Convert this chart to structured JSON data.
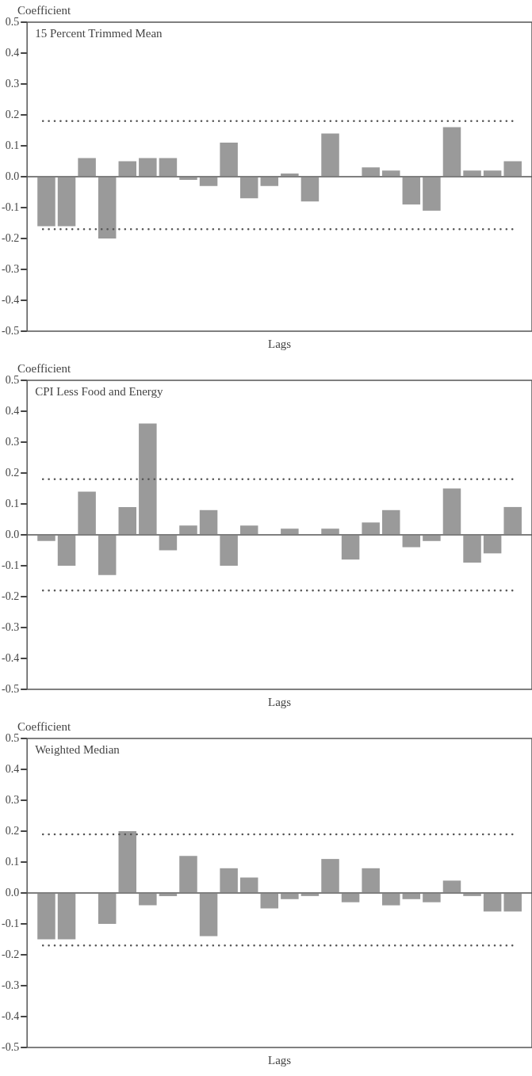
{
  "chart_data": [
    {
      "type": "bar",
      "title": "15 Percent Trimmed Mean",
      "ylabel": "Coefficient",
      "xlabel": "Lags",
      "categories": [
        null,
        null,
        null,
        null,
        null,
        null,
        null,
        null,
        null,
        null,
        null,
        null,
        null,
        null,
        null,
        null,
        null,
        null,
        null,
        null,
        null,
        null,
        null,
        null
      ],
      "values": [
        -0.16,
        -0.16,
        0.06,
        -0.2,
        0.05,
        0.06,
        0.06,
        -0.01,
        -0.03,
        0.11,
        -0.07,
        -0.03,
        0.01,
        -0.08,
        0.14,
        0,
        0.03,
        0.02,
        -0.09,
        -0.11,
        0.16,
        0.02,
        0.02,
        0.05
      ],
      "color": "#9a9a9a",
      "ylim": [
        -0.5,
        0.5
      ],
      "yticks": [
        {
          "value": -0.5,
          "label": "-0.5"
        },
        {
          "value": -0.4,
          "label": "-0.4"
        },
        {
          "value": -0.3,
          "label": "-0.3"
        },
        {
          "value": -0.2,
          "label": "-0.2"
        },
        {
          "value": -0.1,
          "label": "-0.1"
        },
        {
          "value": 0,
          "label": "0.0"
        },
        {
          "value": 0.1,
          "label": "0.1"
        },
        {
          "value": 0.2,
          "label": "0.2"
        },
        {
          "value": 0.3,
          "label": "0.3"
        },
        {
          "value": 0.4,
          "label": "0.4"
        },
        {
          "value": 0.5,
          "label": "0.5"
        }
      ],
      "ref_lines": [
        {
          "axis": "y",
          "value": 0.18,
          "line_style": "dotted",
          "color": "#555555"
        },
        {
          "axis": "y",
          "value": -0.17,
          "line_style": "dotted",
          "color": "#555555"
        }
      ],
      "tick_labels": "y"
    },
    {
      "type": "bar",
      "title": "CPI Less Food and Energy",
      "ylabel": "Coefficient",
      "xlabel": "Lags",
      "categories": [
        null,
        null,
        null,
        null,
        null,
        null,
        null,
        null,
        null,
        null,
        null,
        null,
        null,
        null,
        null,
        null,
        null,
        null,
        null,
        null,
        null,
        null,
        null,
        null
      ],
      "values": [
        -0.02,
        -0.1,
        0.14,
        -0.13,
        0.09,
        0.36,
        -0.05,
        0.03,
        0.08,
        -0.1,
        0.03,
        0,
        0.02,
        0,
        0.02,
        -0.08,
        0.04,
        0.08,
        -0.04,
        -0.02,
        0.15,
        -0.09,
        -0.06,
        0.09
      ],
      "color": "#9a9a9a",
      "ylim": [
        -0.5,
        0.5
      ],
      "yticks": [
        {
          "value": -0.5,
          "label": "-0.5"
        },
        {
          "value": -0.4,
          "label": "-0.4"
        },
        {
          "value": -0.3,
          "label": "-0.3"
        },
        {
          "value": -0.2,
          "label": "-0.2"
        },
        {
          "value": -0.1,
          "label": "-0.1"
        },
        {
          "value": 0,
          "label": "0.0"
        },
        {
          "value": 0.1,
          "label": "0.1"
        },
        {
          "value": 0.2,
          "label": "0.2"
        },
        {
          "value": 0.3,
          "label": "0.3"
        },
        {
          "value": 0.4,
          "label": "0.4"
        },
        {
          "value": 0.5,
          "label": "0.5"
        }
      ],
      "ref_lines": [
        {
          "axis": "y",
          "value": 0.18,
          "line_style": "dotted",
          "color": "#555555"
        },
        {
          "axis": "y",
          "value": -0.18,
          "line_style": "dotted",
          "color": "#555555"
        }
      ],
      "tick_labels": "y"
    },
    {
      "type": "bar",
      "title": "Weighted Median",
      "ylabel": "Coefficient",
      "xlabel": "Lags",
      "categories": [
        null,
        null,
        null,
        null,
        null,
        null,
        null,
        null,
        null,
        null,
        null,
        null,
        null,
        null,
        null,
        null,
        null,
        null,
        null,
        null,
        null,
        null,
        null,
        null
      ],
      "values": [
        -0.15,
        -0.15,
        0,
        -0.1,
        0.2,
        -0.04,
        -0.01,
        0.12,
        -0.14,
        0.08,
        0.05,
        -0.05,
        -0.02,
        -0.01,
        0.11,
        -0.03,
        0.08,
        -0.04,
        -0.02,
        -0.03,
        0.04,
        -0.01,
        -0.06,
        -0.06
      ],
      "color": "#9a9a9a",
      "ylim": [
        -0.5,
        0.5
      ],
      "yticks": [
        {
          "value": -0.5,
          "label": "-0.5"
        },
        {
          "value": -0.4,
          "label": "-0.4"
        },
        {
          "value": -0.3,
          "label": "-0.3"
        },
        {
          "value": -0.2,
          "label": "-0.2"
        },
        {
          "value": -0.1,
          "label": "-0.1"
        },
        {
          "value": 0,
          "label": "0.0"
        },
        {
          "value": 0.1,
          "label": "0.1"
        },
        {
          "value": 0.2,
          "label": "0.2"
        },
        {
          "value": 0.3,
          "label": "0.3"
        },
        {
          "value": 0.4,
          "label": "0.4"
        },
        {
          "value": 0.5,
          "label": "0.5"
        }
      ],
      "ref_lines": [
        {
          "axis": "y",
          "value": 0.19,
          "line_style": "dotted",
          "color": "#555555"
        },
        {
          "axis": "y",
          "value": -0.17,
          "line_style": "dotted",
          "color": "#555555"
        }
      ],
      "tick_labels": "y"
    }
  ]
}
